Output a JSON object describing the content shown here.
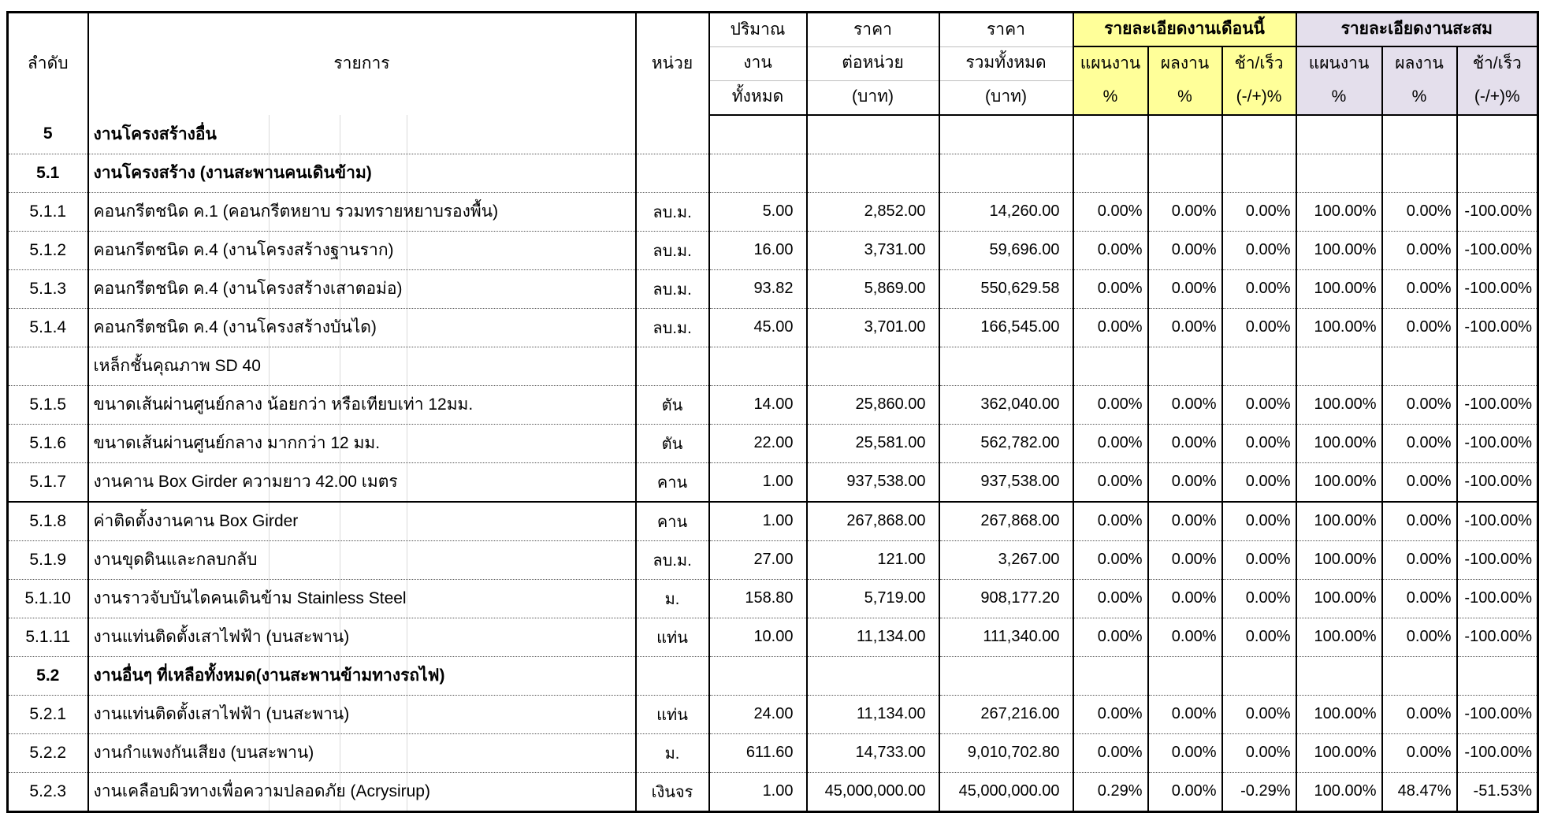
{
  "table": {
    "title_semantic": "construction-progress-boq-table",
    "colors": {
      "month_bg": "#FFFF99",
      "cumulative_bg": "#E4DFEC"
    },
    "header": {
      "col_no": "ลำดับ",
      "col_item": "รายการ",
      "col_unit": "หน่วย",
      "qty_l1": "ปริมาณ",
      "qty_l2": "งาน",
      "qty_l3": "ทั้งหมด",
      "unit_price_l1": "ราคา",
      "unit_price_l2": "ต่อหน่วย",
      "unit_price_l3": "(บาท)",
      "total_price_l1": "ราคา",
      "total_price_l2": "รวมทั้งหมด",
      "total_price_l3": "(บาท)",
      "group_month": "รายละเอียดงานเดือนนี้",
      "group_cumulative": "รายละเอียดงานสะสม",
      "sub_plan": "แผนงาน",
      "sub_actual": "ผลงาน",
      "sub_diff": "ช้า/เร็ว",
      "sub_pct": "%",
      "sub_diff_pct": "(-/+)%"
    },
    "rows": [
      {
        "no": "5",
        "item": "งานโครงสร้างอื่น",
        "unit": "",
        "qty": "",
        "unit_price": "",
        "total_price": "",
        "month_plan": "",
        "month_actual": "",
        "month_diff": "",
        "cum_plan": "",
        "cum_actual": "",
        "cum_diff": "",
        "style": "section"
      },
      {
        "no": "5.1",
        "item": "งานโครงสร้าง (งานสะพานคนเดินข้าม)",
        "unit": "",
        "qty": "",
        "unit_price": "",
        "total_price": "",
        "month_plan": "",
        "month_actual": "",
        "month_diff": "",
        "cum_plan": "",
        "cum_actual": "",
        "cum_diff": "",
        "style": "section"
      },
      {
        "no": "5.1.1",
        "item": "คอนกรีตชนิด ค.1 (คอนกรีตหยาบ รวมทรายหยาบรองพื้น)",
        "unit": "ลบ.ม.",
        "qty": "5.00",
        "unit_price": "2,852.00",
        "total_price": "14,260.00",
        "month_plan": "0.00%",
        "month_actual": "0.00%",
        "month_diff": "0.00%",
        "cum_plan": "100.00%",
        "cum_actual": "0.00%",
        "cum_diff": "-100.00%",
        "style": "normal"
      },
      {
        "no": "5.1.2",
        "item": "คอนกรีตชนิด ค.4 (งานโครงสร้างฐานราก)",
        "unit": "ลบ.ม.",
        "qty": "16.00",
        "unit_price": "3,731.00",
        "total_price": "59,696.00",
        "month_plan": "0.00%",
        "month_actual": "0.00%",
        "month_diff": "0.00%",
        "cum_plan": "100.00%",
        "cum_actual": "0.00%",
        "cum_diff": "-100.00%",
        "style": "normal"
      },
      {
        "no": "5.1.3",
        "item": "คอนกรีตชนิด ค.4 (งานโครงสร้างเสาตอม่อ)",
        "unit": "ลบ.ม.",
        "qty": "93.82",
        "unit_price": "5,869.00",
        "total_price": "550,629.58",
        "month_plan": "0.00%",
        "month_actual": "0.00%",
        "month_diff": "0.00%",
        "cum_plan": "100.00%",
        "cum_actual": "0.00%",
        "cum_diff": "-100.00%",
        "style": "normal"
      },
      {
        "no": "5.1.4",
        "item": "คอนกรีตชนิด ค.4 (งานโครงสร้างบันได)",
        "unit": "ลบ.ม.",
        "qty": "45.00",
        "unit_price": "3,701.00",
        "total_price": "166,545.00",
        "month_plan": "0.00%",
        "month_actual": "0.00%",
        "month_diff": "0.00%",
        "cum_plan": "100.00%",
        "cum_actual": "0.00%",
        "cum_diff": "-100.00%",
        "style": "normal"
      },
      {
        "no": "",
        "item": "เหล็กชั้นคุณภาพ SD 40",
        "unit": "",
        "qty": "",
        "unit_price": "",
        "total_price": "",
        "month_plan": "",
        "month_actual": "",
        "month_diff": "",
        "cum_plan": "",
        "cum_actual": "",
        "cum_diff": "",
        "style": "normal"
      },
      {
        "no": "5.1.5",
        "item": "ขนาดเส้นผ่านศูนย์กลาง น้อยกว่า หรือเทียบเท่า 12มม.",
        "unit": "ตัน",
        "qty": "14.00",
        "unit_price": "25,860.00",
        "total_price": "362,040.00",
        "month_plan": "0.00%",
        "month_actual": "0.00%",
        "month_diff": "0.00%",
        "cum_plan": "100.00%",
        "cum_actual": "0.00%",
        "cum_diff": "-100.00%",
        "style": "normal"
      },
      {
        "no": "5.1.6",
        "item": "ขนาดเส้นผ่านศูนย์กลาง มากกว่า 12 มม.",
        "unit": "ตัน",
        "qty": "22.00",
        "unit_price": "25,581.00",
        "total_price": "562,782.00",
        "month_plan": "0.00%",
        "month_actual": "0.00%",
        "month_diff": "0.00%",
        "cum_plan": "100.00%",
        "cum_actual": "0.00%",
        "cum_diff": "-100.00%",
        "style": "normal"
      },
      {
        "no": "5.1.7",
        "item": "งานคาน Box Girder ความยาว 42.00 เมตร",
        "unit": "คาน",
        "qty": "1.00",
        "unit_price": "937,538.00",
        "total_price": "937,538.00",
        "month_plan": "0.00%",
        "month_actual": "0.00%",
        "month_diff": "0.00%",
        "cum_plan": "100.00%",
        "cum_actual": "0.00%",
        "cum_diff": "-100.00%",
        "style": "normal",
        "thick_bottom": true
      },
      {
        "no": "5.1.8",
        "item": "ค่าติดตั้งงานคาน Box Girder",
        "unit": "คาน",
        "qty": "1.00",
        "unit_price": "267,868.00",
        "total_price": "267,868.00",
        "month_plan": "0.00%",
        "month_actual": "0.00%",
        "month_diff": "0.00%",
        "cum_plan": "100.00%",
        "cum_actual": "0.00%",
        "cum_diff": "-100.00%",
        "style": "normal"
      },
      {
        "no": "5.1.9",
        "item": "งานขุดดินและกลบกลับ",
        "unit": "ลบ.ม.",
        "qty": "27.00",
        "unit_price": "121.00",
        "total_price": "3,267.00",
        "month_plan": "0.00%",
        "month_actual": "0.00%",
        "month_diff": "0.00%",
        "cum_plan": "100.00%",
        "cum_actual": "0.00%",
        "cum_diff": "-100.00%",
        "style": "normal"
      },
      {
        "no": "5.1.10",
        "item": "งานราวจับบันไดคนเดินข้าม Stainless Steel",
        "unit": "ม.",
        "qty": "158.80",
        "unit_price": "5,719.00",
        "total_price": "908,177.20",
        "month_plan": "0.00%",
        "month_actual": "0.00%",
        "month_diff": "0.00%",
        "cum_plan": "100.00%",
        "cum_actual": "0.00%",
        "cum_diff": "-100.00%",
        "style": "normal"
      },
      {
        "no": "5.1.11",
        "item": "งานแท่นติดตั้งเสาไฟฟ้า (บนสะพาน)",
        "unit": "แท่น",
        "qty": "10.00",
        "unit_price": "11,134.00",
        "total_price": "111,340.00",
        "month_plan": "0.00%",
        "month_actual": "0.00%",
        "month_diff": "0.00%",
        "cum_plan": "100.00%",
        "cum_actual": "0.00%",
        "cum_diff": "-100.00%",
        "style": "normal"
      },
      {
        "no": "5.2",
        "item": "งานอื่นๆ ที่เหลือทั้งหมด(งานสะพานข้ามทางรถไฟ)",
        "unit": "",
        "qty": "",
        "unit_price": "",
        "total_price": "",
        "month_plan": "",
        "month_actual": "",
        "month_diff": "",
        "cum_plan": "",
        "cum_actual": "",
        "cum_diff": "",
        "style": "section"
      },
      {
        "no": "5.2.1",
        "item": "งานแท่นติดตั้งเสาไฟฟ้า (บนสะพาน)",
        "unit": "แท่น",
        "qty": "24.00",
        "unit_price": "11,134.00",
        "total_price": "267,216.00",
        "month_plan": "0.00%",
        "month_actual": "0.00%",
        "month_diff": "0.00%",
        "cum_plan": "100.00%",
        "cum_actual": "0.00%",
        "cum_diff": "-100.00%",
        "style": "normal"
      },
      {
        "no": "5.2.2",
        "item": "งานกำแพงกันเสียง (บนสะพาน)",
        "unit": "ม.",
        "qty": "611.60",
        "unit_price": "14,733.00",
        "total_price": "9,010,702.80",
        "month_plan": "0.00%",
        "month_actual": "0.00%",
        "month_diff": "0.00%",
        "cum_plan": "100.00%",
        "cum_actual": "0.00%",
        "cum_diff": "-100.00%",
        "style": "normal"
      },
      {
        "no": "5.2.3",
        "item": "งานเคลือบผิวทางเพื่อความปลอดภัย (Acrysirup)",
        "unit": "เงินจร",
        "qty": "1.00",
        "unit_price": "45,000,000.00",
        "total_price": "45,000,000.00",
        "month_plan": "0.29%",
        "month_actual": "0.00%",
        "month_diff": "-0.29%",
        "cum_plan": "100.00%",
        "cum_actual": "48.47%",
        "cum_diff": "-51.53%",
        "style": "normal"
      }
    ]
  }
}
